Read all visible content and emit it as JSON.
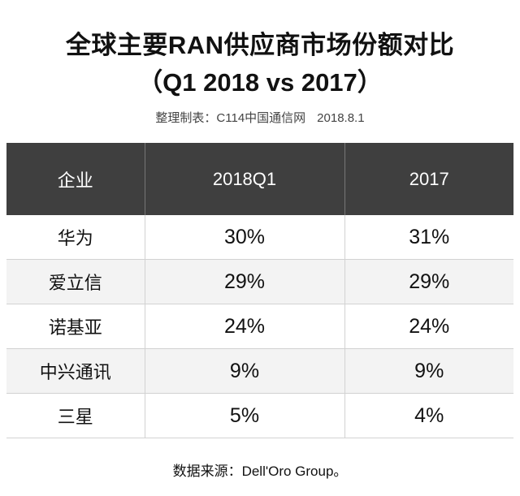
{
  "title": "全球主要RAN供应商市场份额对比",
  "subtitle": "（Q1 2018 vs 2017）",
  "meta": {
    "compiler": "整理制表：C114中国通信网",
    "date": "2018.8.1"
  },
  "table": {
    "headers": [
      "企业",
      "2018Q1",
      "2017"
    ],
    "rows": [
      [
        "华为",
        "30%",
        "31%"
      ],
      [
        "爱立信",
        "29%",
        "29%"
      ],
      [
        "诺基亚",
        "24%",
        "24%"
      ],
      [
        "中兴通讯",
        "9%",
        "9%"
      ],
      [
        "三星",
        "5%",
        "4%"
      ]
    ]
  },
  "source": "数据来源：Dell'Oro Group。",
  "colors": {
    "header_bg": "#3f3f3f",
    "header_text": "#ffffff",
    "stripe": "#f3f3f3"
  }
}
